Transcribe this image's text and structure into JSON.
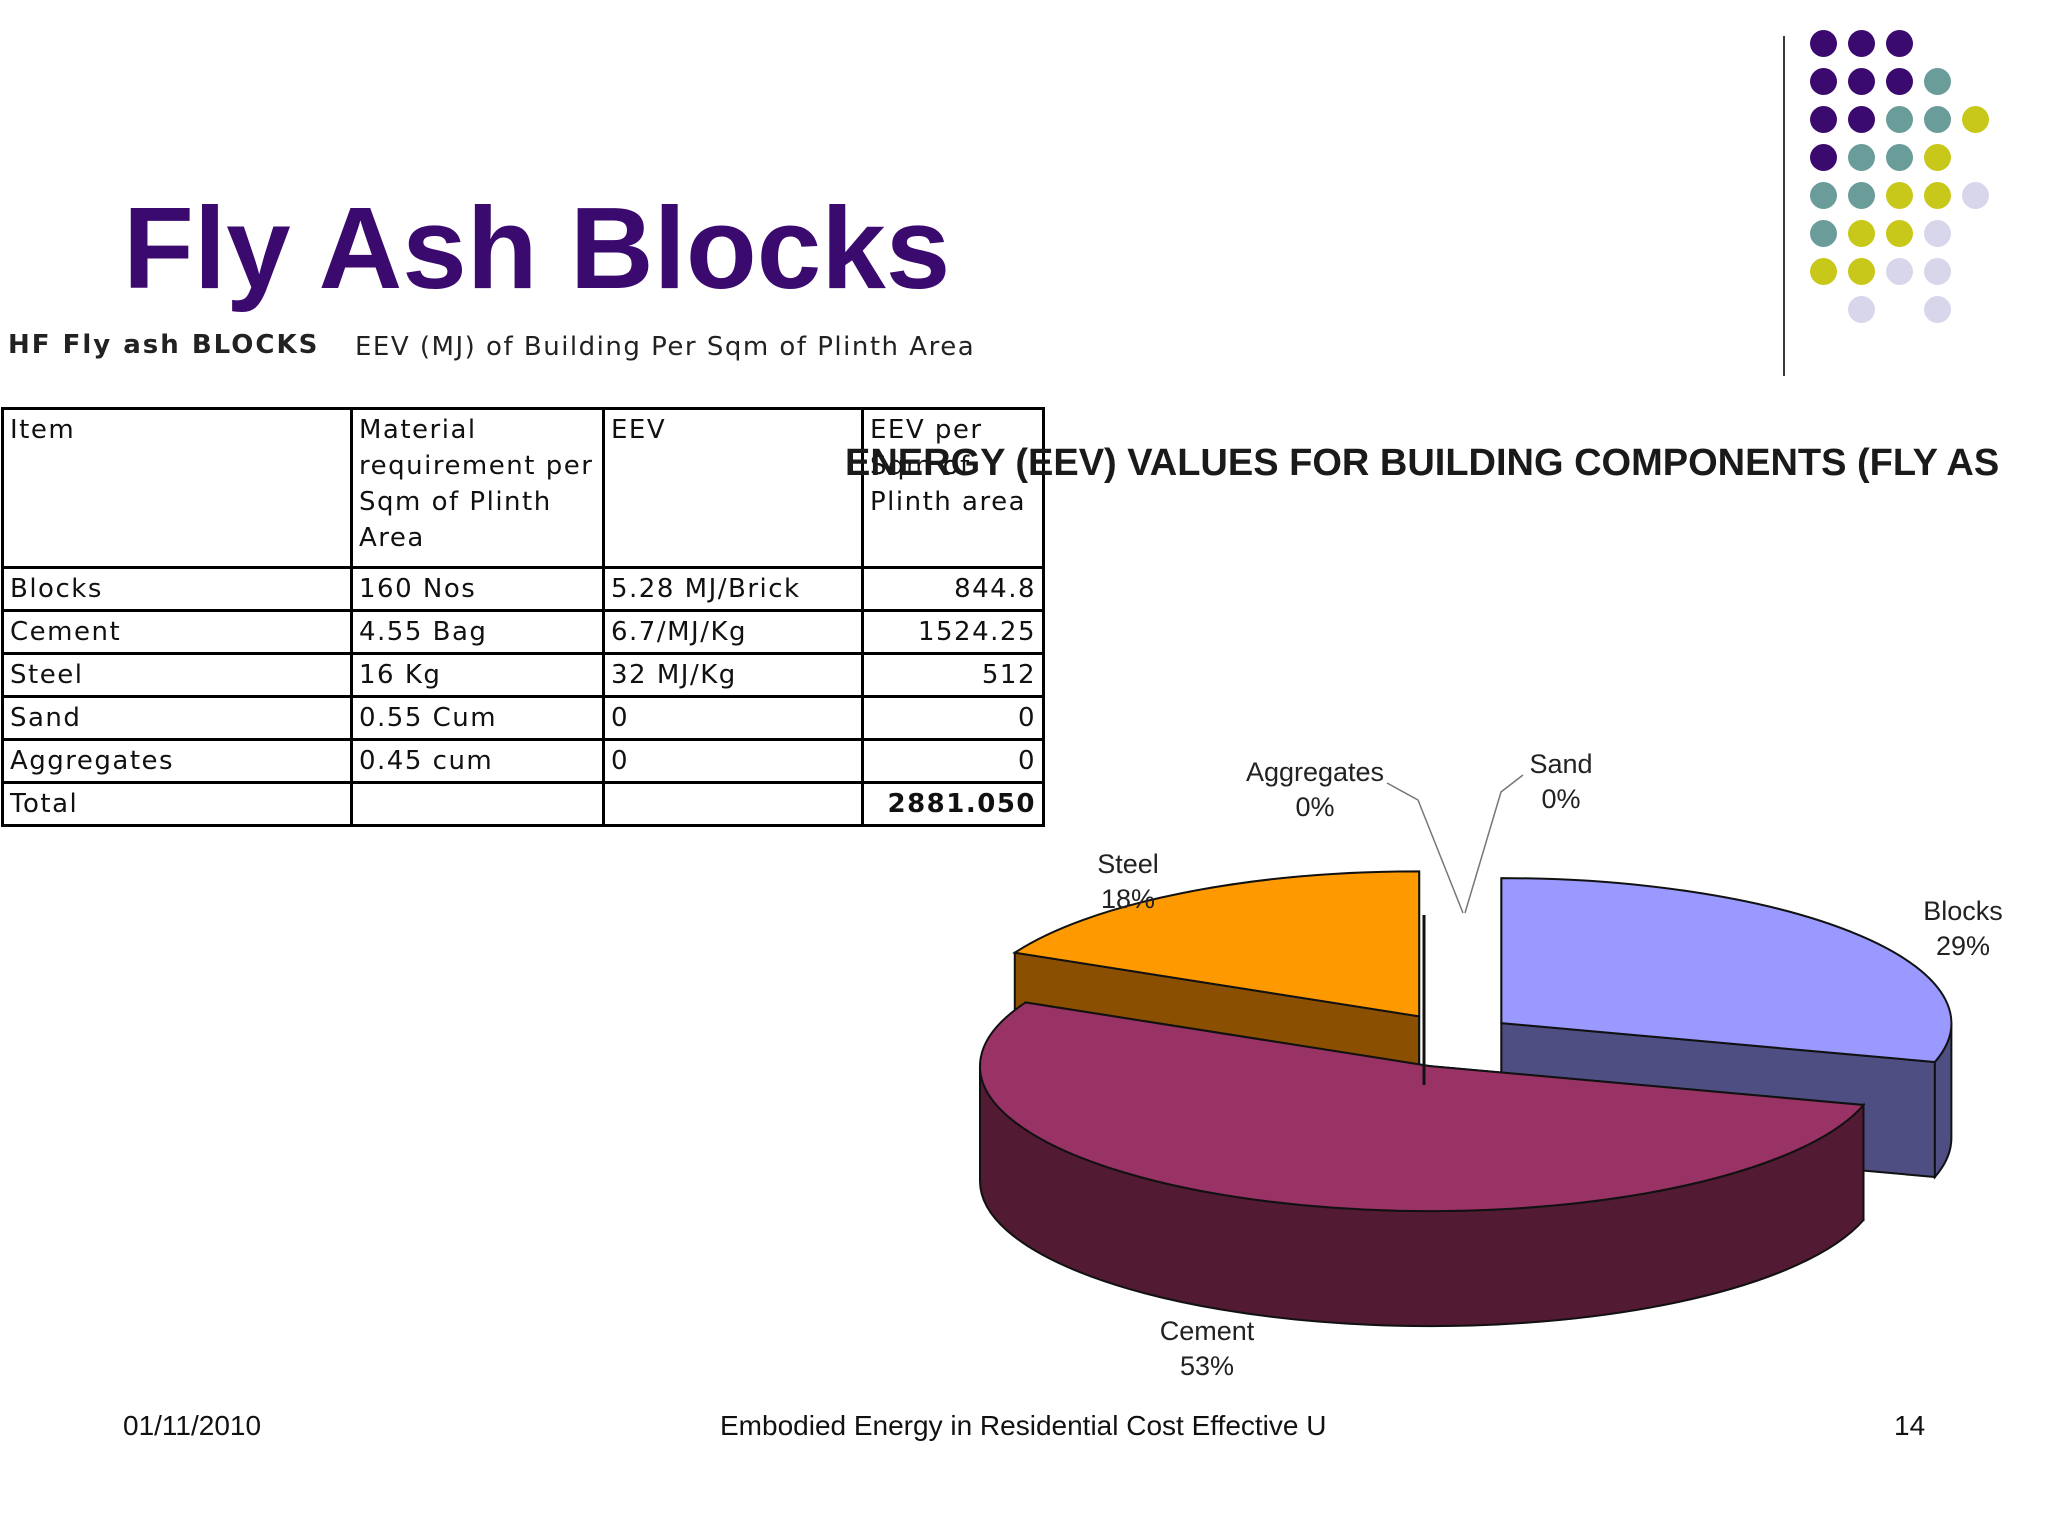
{
  "slide": {
    "title": "Fly Ash Blocks",
    "subtitle_left": "HF Fly ash BLOCKS",
    "subtitle_right": "EEV (MJ) of Building Per Sqm of Plinth Area",
    "footer_date": "01/11/2010",
    "footer_center": "Embodied Energy in Residential Cost Effective U",
    "page_number": "14"
  },
  "decor": {
    "dot_colors": {
      "purple": "#3b0a6e",
      "teal": "#6a9c9a",
      "lime": "#c8c81a",
      "lavender": "#d8d6ea"
    }
  },
  "table": {
    "headers": [
      "Item",
      "Material requirement per Sqm of Plinth Area",
      "EEV",
      "EEV per Sqm of Plinth area"
    ],
    "rows": [
      [
        "Blocks",
        "160 Nos",
        "5.28 MJ/Brick",
        "844.8"
      ],
      [
        "Cement",
        "4.55 Bag",
        "6.7/MJ/Kg",
        "1524.25"
      ],
      [
        "Steel",
        "16 Kg",
        "32 MJ/Kg",
        "512"
      ],
      [
        "Sand",
        "0.55 Cum",
        "0",
        "0"
      ],
      [
        "Aggregates",
        "0.45 cum",
        "0",
        "0"
      ],
      [
        "Total",
        "",
        "",
        "2881.050"
      ]
    ]
  },
  "chart_data": {
    "type": "pie",
    "title": "ENERGY (EEV) VALUES FOR BUILDING COMPONENTS (FLY AS",
    "slices": [
      {
        "label": "Blocks",
        "percent_label": "29%",
        "value": 844.8,
        "color": "#9999ff",
        "side_color": "#4e4e82"
      },
      {
        "label": "Cement",
        "percent_label": "53%",
        "value": 1524.25,
        "color": "#993366",
        "side_color": "#521a33"
      },
      {
        "label": "Steel",
        "percent_label": "18%",
        "value": 512,
        "color": "#ff9900",
        "side_color": "#8a4f00"
      },
      {
        "label": "Aggregates",
        "percent_label": "0%",
        "value": 0,
        "color": "#d8d8d8",
        "side_color": "#8a8a8a"
      },
      {
        "label": "Sand",
        "percent_label": "0%",
        "value": 0,
        "color": "#d8d8d8",
        "side_color": "#8a8a8a"
      }
    ],
    "exploded": true,
    "style": "3d"
  }
}
